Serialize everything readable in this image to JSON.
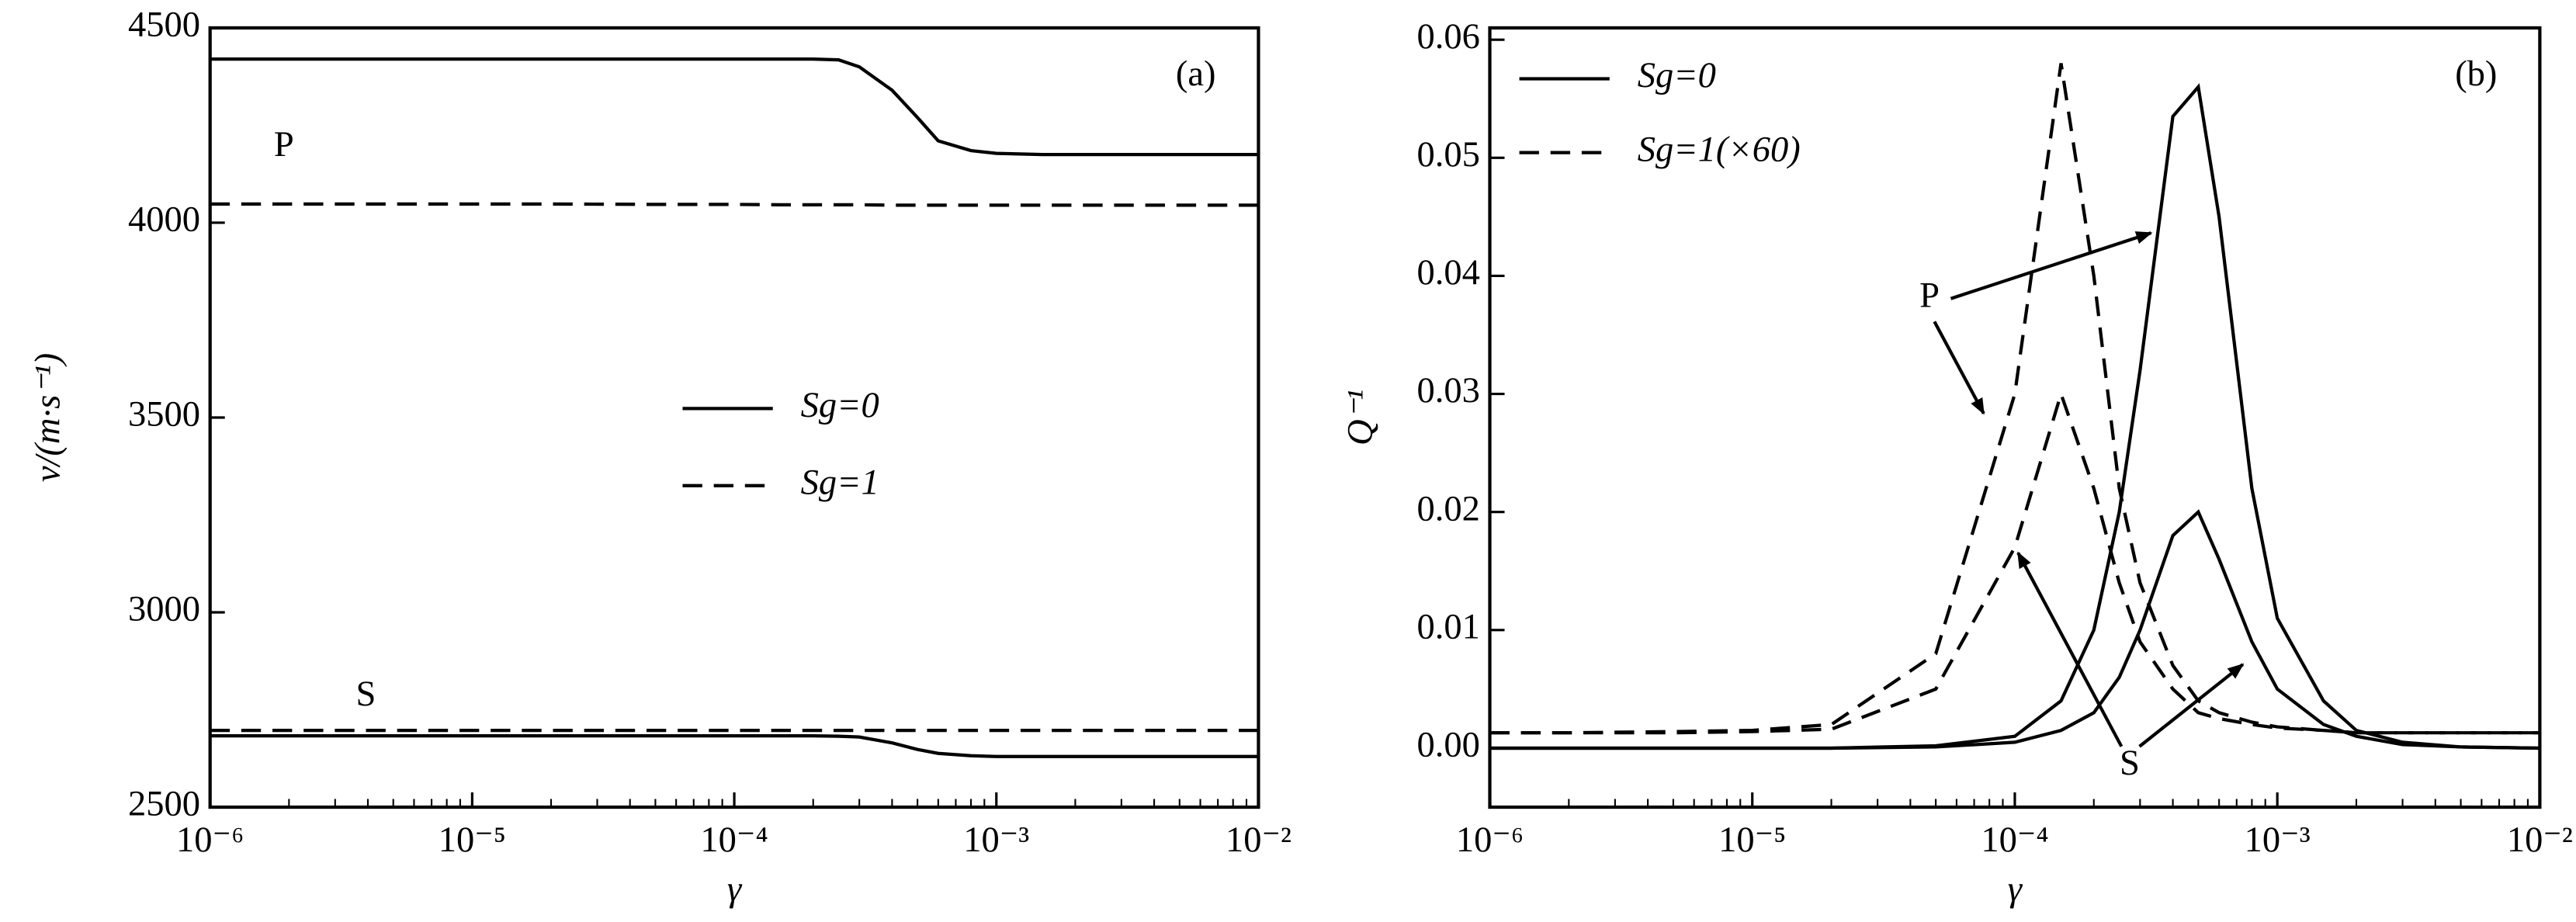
{
  "chart_data": [
    {
      "type": "line",
      "panel_label": "(a)",
      "x_label": "γ",
      "y_label": "v/(m·s⁻¹)",
      "log_x": true,
      "xlim": [
        1e-06,
        0.01
      ],
      "xticks": [
        {
          "value": 1e-06,
          "label": "10⁻⁶"
        },
        {
          "value": 1e-05,
          "label": "10⁻⁵"
        },
        {
          "value": 0.0001,
          "label": "10⁻⁴"
        },
        {
          "value": 0.001,
          "label": "10⁻³"
        },
        {
          "value": 0.01,
          "label": "10⁻²"
        }
      ],
      "ylim": [
        2500,
        4500
      ],
      "yticks": [
        2500,
        3000,
        3500,
        4000,
        4500
      ],
      "annotations": [
        "P",
        "S"
      ],
      "x": [
        1e-06,
        2e-06,
        5e-06,
        1e-05,
        2e-05,
        5e-05,
        0.0001,
        0.00015,
        0.0002,
        0.00025,
        0.0003,
        0.0004,
        0.0005,
        0.0006,
        0.0008,
        0.001,
        0.0015,
        0.002,
        0.003,
        0.005,
        0.01
      ],
      "series": [
        {
          "name": "Sg=0",
          "style": "solid",
          "color": "#000000",
          "lines": [
            [
              4420,
              4420,
              4420,
              4420,
              4420,
              4420,
              4420,
              4420,
              4420,
              4418,
              4400,
              4340,
              4270,
              4210,
              4185,
              4178,
              4175,
              4175,
              4175,
              4175,
              4175
            ],
            [
              2683,
              2683,
              2683,
              2683,
              2683,
              2683,
              2683,
              2683,
              2683,
              2682,
              2680,
              2665,
              2648,
              2638,
              2632,
              2630,
              2630,
              2630,
              2630,
              2630,
              2630
            ]
          ]
        },
        {
          "name": "Sg=1",
          "style": "dashed",
          "color": "#000000",
          "lines": [
            [
              4048,
              4048,
              4048,
              4048,
              4048,
              4047,
              4047,
              4046,
              4046,
              4046,
              4046,
              4045,
              4045,
              4045,
              4045,
              4045,
              4045,
              4045,
              4045,
              4045,
              4045
            ],
            [
              2697,
              2697,
              2697,
              2697,
              2697,
              2697,
              2697,
              2697,
              2697,
              2697,
              2697,
              2697,
              2697,
              2697,
              2697,
              2697,
              2697,
              2697,
              2697,
              2697,
              2697
            ]
          ]
        }
      ]
    },
    {
      "type": "line",
      "panel_label": "(b)",
      "x_label": "γ",
      "y_label": "Q⁻¹",
      "log_x": true,
      "xlim": [
        1e-06,
        0.01
      ],
      "xticks": [
        {
          "value": 1e-06,
          "label": "10⁻⁶"
        },
        {
          "value": 1e-05,
          "label": "10⁻⁵"
        },
        {
          "value": 0.0001,
          "label": "10⁻⁴"
        },
        {
          "value": 0.001,
          "label": "10⁻³"
        },
        {
          "value": 0.01,
          "label": "10⁻²"
        }
      ],
      "ylim": [
        -0.005,
        0.061
      ],
      "yticks": [
        {
          "value": 0,
          "label": "0.00"
        },
        {
          "value": 0.01,
          "label": "0.01"
        },
        {
          "value": 0.02,
          "label": "0.02"
        },
        {
          "value": 0.03,
          "label": "0.03"
        },
        {
          "value": 0.04,
          "label": "0.04"
        },
        {
          "value": 0.05,
          "label": "0.05"
        },
        {
          "value": 0.06,
          "label": "0.06"
        }
      ],
      "annotations": [
        "P",
        "S"
      ],
      "x": [
        1e-06,
        2e-06,
        5e-06,
        1e-05,
        2e-05,
        5e-05,
        0.0001,
        0.00015,
        0.0002,
        0.00025,
        0.0003,
        0.0004,
        0.0005,
        0.0006,
        0.0008,
        0.001,
        0.0015,
        0.002,
        0.003,
        0.005,
        0.01
      ],
      "series": [
        {
          "name": "Sg=0",
          "style": "solid",
          "color": "#000000",
          "lines": [
            [
              0,
              0,
              0,
              0,
              0,
              0.0002,
              0.001,
              0.004,
              0.01,
              0.02,
              0.032,
              0.0535,
              0.056,
              0.045,
              0.022,
              0.011,
              0.004,
              0.0015,
              0.0005,
              0.0001,
              0
            ],
            [
              0,
              0,
              0,
              0,
              0,
              0.0001,
              0.0005,
              0.0015,
              0.003,
              0.006,
              0.01,
              0.018,
              0.02,
              0.016,
              0.009,
              0.005,
              0.002,
              0.001,
              0.0003,
              0.0001,
              0
            ]
          ]
        },
        {
          "name": "Sg=1(×60)",
          "style": "dashed",
          "color": "#000000",
          "lines": [
            [
              0.0013,
              0.0013,
              0.0014,
              0.0015,
              0.002,
              0.008,
              0.03,
              0.058,
              0.04,
              0.022,
              0.014,
              0.007,
              0.004,
              0.003,
              0.0022,
              0.0018,
              0.0015,
              0.0013,
              0.0013,
              0.0013,
              0.0013
            ],
            [
              0.0013,
              0.0013,
              0.0013,
              0.0014,
              0.0016,
              0.005,
              0.017,
              0.03,
              0.022,
              0.014,
              0.009,
              0.005,
              0.003,
              0.0025,
              0.002,
              0.0017,
              0.0015,
              0.0013,
              0.0013,
              0.0013,
              0.0013
            ]
          ]
        }
      ]
    }
  ]
}
